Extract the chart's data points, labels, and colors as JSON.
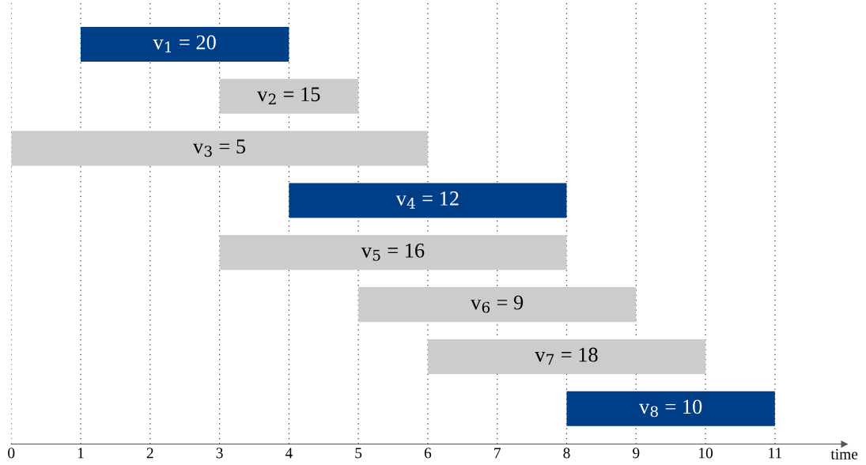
{
  "chart_data": {
    "type": "bar",
    "orientation": "horizontal",
    "xlabel": "time",
    "categories": [
      null,
      null,
      null,
      null,
      null,
      null,
      null,
      null
    ],
    "base": [
      1,
      3,
      0,
      4,
      3,
      5,
      6,
      8
    ],
    "values": [
      3,
      2,
      6,
      4,
      5,
      4,
      4,
      3
    ],
    "colors": [
      "#003f87",
      "#cccccc",
      "#cccccc",
      "#003f87",
      "#cccccc",
      "#cccccc",
      "#cccccc",
      "#003f87"
    ],
    "value_labels": [
      "v$_{1}$ = 20",
      "v$_{2}$ = 15",
      "v$_{3}$ = 5",
      "v$_{4}$ = 12",
      "v$_{5}$ = 16",
      "v$_{6}$ = 9",
      "v$_{7}$ = 18",
      "v$_{8}$ = 10"
    ],
    "xlim": [
      0,
      12
    ],
    "xticks": [
      0,
      1,
      2,
      3,
      4,
      5,
      6,
      7,
      8,
      9,
      10,
      11
    ],
    "grid": "x",
    "legend": false
  }
}
